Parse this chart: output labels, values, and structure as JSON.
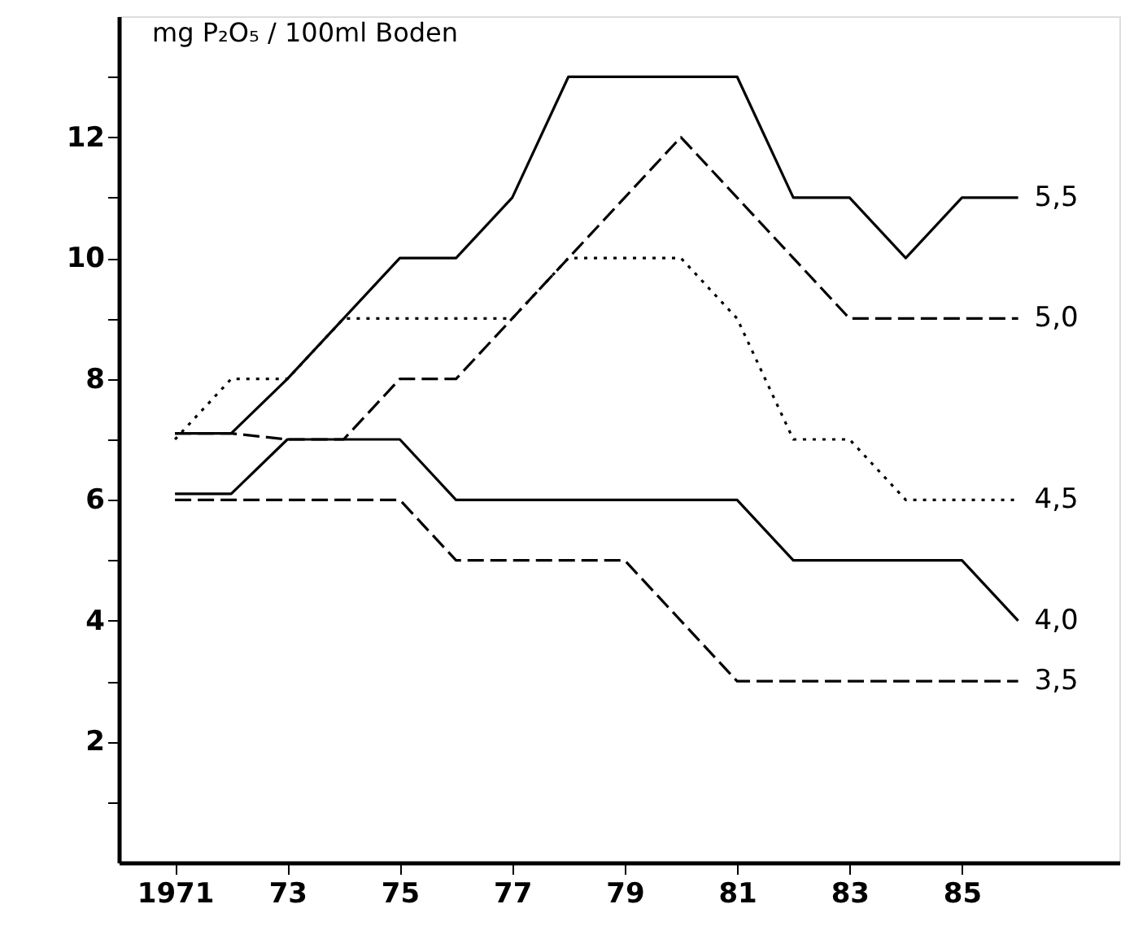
{
  "chart_data": {
    "type": "line",
    "ylabel": "mg P₂O₅ / 100ml Boden",
    "x": [
      1971,
      1972,
      1973,
      1974,
      1975,
      1976,
      1977,
      1978,
      1979,
      1980,
      1981,
      1982,
      1983,
      1984,
      1985,
      1986
    ],
    "series": [
      {
        "name": "5,5",
        "color": "#000000",
        "line_style": "solid",
        "values": [
          7.1,
          7.1,
          8,
          9,
          10,
          10,
          11,
          13,
          13,
          13,
          13,
          11,
          11,
          10,
          11,
          11
        ]
      },
      {
        "name": "5,0",
        "color": "#000000",
        "line_style": "dashed",
        "values": [
          7.1,
          7.1,
          7,
          7,
          8,
          8,
          9,
          10,
          11,
          12,
          11,
          10,
          9,
          9,
          9,
          9
        ]
      },
      {
        "name": "4,5",
        "color": "#000000",
        "line_style": "dotted",
        "values": [
          7,
          8,
          8,
          9,
          9,
          9,
          9,
          10,
          10,
          10,
          9,
          7,
          7,
          6,
          6,
          6
        ]
      },
      {
        "name": "4,0",
        "color": "#000000",
        "line_style": "solid",
        "values": [
          6.1,
          6.1,
          7,
          7,
          7,
          6,
          6,
          6,
          6,
          6,
          6,
          5,
          5,
          5,
          5,
          4
        ]
      },
      {
        "name": "3,5",
        "color": "#000000",
        "line_style": "dashed",
        "values": [
          6,
          6,
          6,
          6,
          6,
          5,
          5,
          5,
          5,
          4,
          3,
          3,
          3,
          3,
          3,
          3
        ]
      }
    ],
    "xlim": [
      1970,
      1987.8
    ],
    "xticks": [
      1971,
      {
        "value": 1973,
        "label": "73"
      },
      {
        "value": 1975,
        "label": "75"
      },
      {
        "value": 1977,
        "label": "77"
      },
      {
        "value": 1979,
        "label": "79"
      },
      {
        "value": 1981,
        "label": "81"
      },
      {
        "value": 1983,
        "label": "83"
      },
      {
        "value": 1985,
        "label": "85"
      }
    ],
    "ylim": [
      0,
      14
    ],
    "yticks": [
      {
        "value": 1,
        "label": null
      },
      2,
      {
        "value": 3,
        "label": null
      },
      4,
      {
        "value": 5,
        "label": null
      },
      6,
      {
        "value": 7,
        "label": null
      },
      8,
      {
        "value": 9,
        "label": null
      },
      10,
      {
        "value": 11,
        "label": null
      },
      12,
      {
        "value": 13,
        "label": null
      }
    ],
    "grid": false,
    "legend": false,
    "marker": "none"
  }
}
